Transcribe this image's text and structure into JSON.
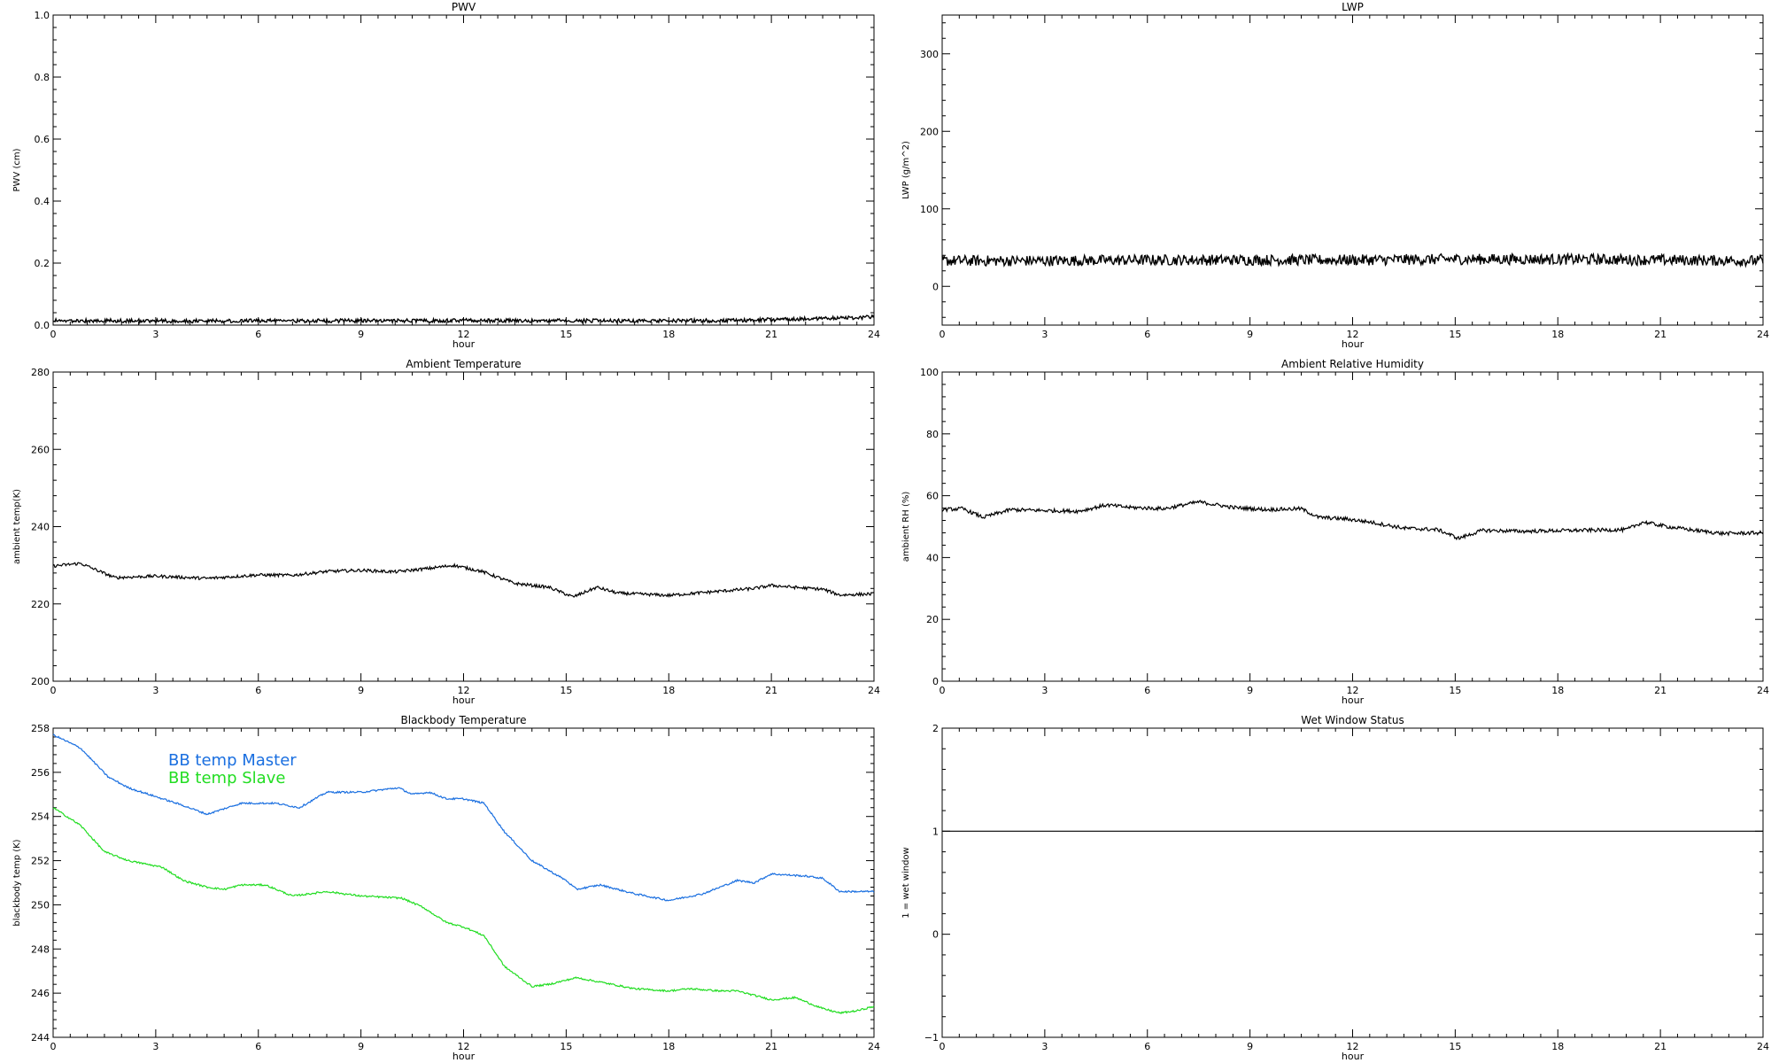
{
  "chart_data": [
    {
      "id": "pwv",
      "type": "line",
      "title": "PWV",
      "xlabel": "hour",
      "ylabel": "PWV (cm)",
      "xlim": [
        0,
        24
      ],
      "ylim": [
        0,
        1.0
      ],
      "xticks": [
        0,
        3,
        6,
        9,
        12,
        15,
        18,
        21,
        24
      ],
      "yticks": [
        0.0,
        0.2,
        0.4,
        0.6,
        0.8,
        1.0
      ],
      "ytick_labels": [
        "0.0",
        "0.2",
        "0.4",
        "0.6",
        "0.8",
        "1.0"
      ],
      "grid": false,
      "noise": 0.02,
      "series": [
        {
          "color": "#000000",
          "x": [
            0,
            2,
            4,
            6,
            8,
            10,
            12,
            14,
            16,
            18,
            20,
            22,
            23.5,
            24
          ],
          "y": [
            0.008,
            0.008,
            0.007,
            0.008,
            0.008,
            0.008,
            0.009,
            0.008,
            0.008,
            0.008,
            0.009,
            0.014,
            0.018,
            0.02
          ]
        }
      ]
    },
    {
      "id": "lwp",
      "type": "line",
      "title": "LWP",
      "xlabel": "hour",
      "ylabel": "LWP (g/m^2)",
      "xlim": [
        0,
        24
      ],
      "ylim": [
        -50,
        350
      ],
      "xticks": [
        0,
        3,
        6,
        9,
        12,
        15,
        18,
        21,
        24
      ],
      "yticks": [
        0,
        100,
        200,
        300
      ],
      "ytick_labels": [
        "0",
        "100",
        "200",
        "300"
      ],
      "grid": false,
      "noise": 7,
      "series": [
        {
          "color": "#000000",
          "x": [
            0,
            3,
            6,
            9,
            12,
            15,
            18,
            21,
            24
          ],
          "y": [
            33,
            33,
            34,
            34,
            34,
            35,
            35,
            34,
            33
          ]
        }
      ]
    },
    {
      "id": "ambient-temp",
      "type": "line",
      "title": "Ambient Temperature",
      "xlabel": "hour",
      "ylabel": "ambient temp(K)",
      "xlim": [
        0,
        24
      ],
      "ylim": [
        200,
        280
      ],
      "xticks": [
        0,
        3,
        6,
        9,
        12,
        15,
        18,
        21,
        24
      ],
      "yticks": [
        200,
        220,
        240,
        260,
        280
      ],
      "ytick_labels": [
        "200",
        "220",
        "240",
        "260",
        "280"
      ],
      "grid": false,
      "noise": 0.4,
      "series": [
        {
          "color": "#000000",
          "x": [
            0,
            0.8,
            1.8,
            3,
            4.5,
            6,
            7,
            8,
            9,
            10,
            11,
            11.7,
            12.5,
            13.5,
            14.5,
            15.2,
            15.9,
            16.5,
            18,
            19.5,
            20.5,
            21,
            21.8,
            22.5,
            23,
            24
          ],
          "y": [
            229.8,
            230.5,
            226.8,
            227.2,
            226.6,
            227.5,
            227.4,
            228.4,
            228.7,
            228.3,
            229.2,
            230.0,
            228.5,
            225.3,
            224.3,
            221.8,
            224.3,
            222.8,
            222.2,
            223.3,
            224.0,
            224.8,
            224.2,
            223.8,
            222.3,
            222.6
          ]
        }
      ]
    },
    {
      "id": "ambient-rh",
      "type": "line",
      "title": "Ambient Relative Humidity",
      "xlabel": "hour",
      "ylabel": "ambient RH (%)",
      "xlim": [
        0,
        24
      ],
      "ylim": [
        0,
        100
      ],
      "xticks": [
        0,
        3,
        6,
        9,
        12,
        15,
        18,
        21,
        24
      ],
      "yticks": [
        0,
        20,
        40,
        60,
        80,
        100
      ],
      "ytick_labels": [
        "0",
        "20",
        "40",
        "60",
        "80",
        "100"
      ],
      "grid": false,
      "noise": 0.6,
      "series": [
        {
          "color": "#000000",
          "x": [
            0,
            0.6,
            1.2,
            2,
            3,
            4,
            4.8,
            5.5,
            6.5,
            7.5,
            8.5,
            9.5,
            10.5,
            11,
            11.8,
            12.5,
            13.5,
            14.5,
            15.1,
            15.8,
            17,
            18.5,
            20,
            20.5,
            21.2,
            22,
            22.8,
            24
          ],
          "y": [
            55.5,
            55.8,
            53.0,
            55.5,
            55.2,
            55.0,
            57.0,
            56.2,
            55.8,
            58.0,
            56.2,
            55.5,
            55.8,
            53.0,
            52.5,
            51.5,
            49.5,
            49.0,
            46.2,
            48.8,
            48.5,
            48.8,
            49.0,
            51.5,
            50.0,
            48.8,
            47.8,
            48.0
          ]
        }
      ]
    },
    {
      "id": "blackbody-temp",
      "type": "line",
      "title": "Blackbody Temperature",
      "xlabel": "hour",
      "ylabel": "blackbody temp (K)",
      "xlim": [
        0,
        24
      ],
      "ylim": [
        244,
        258
      ],
      "xticks": [
        0,
        3,
        6,
        9,
        12,
        15,
        18,
        21,
        24
      ],
      "yticks": [
        244,
        246,
        248,
        250,
        252,
        254,
        256,
        258
      ],
      "ytick_labels": [
        "244",
        "246",
        "248",
        "250",
        "252",
        "254",
        "256",
        "258"
      ],
      "grid": false,
      "noise": 0.04,
      "legend": "top-left",
      "series": [
        {
          "name": "BB temp Master",
          "color": "#1a6fe0",
          "x": [
            0,
            0.8,
            1.6,
            2.2,
            3,
            3.8,
            4.5,
            5.5,
            6.5,
            7.2,
            8,
            9,
            10.1,
            10.5,
            11,
            11.5,
            12,
            12.6,
            13.2,
            14,
            15,
            15.3,
            16,
            17,
            18,
            19,
            20,
            20.5,
            21,
            22,
            22.5,
            23,
            24
          ],
          "y": [
            257.7,
            257.1,
            255.8,
            255.3,
            254.9,
            254.5,
            254.1,
            254.6,
            254.6,
            254.4,
            255.1,
            255.1,
            255.3,
            255.0,
            255.1,
            254.8,
            254.8,
            254.6,
            253.3,
            252.0,
            251.1,
            250.7,
            250.9,
            250.5,
            250.2,
            250.5,
            251.1,
            251.0,
            251.4,
            251.3,
            251.2,
            250.6,
            250.6
          ]
        },
        {
          "name": "BB temp Slave",
          "color": "#22dd22",
          "x": [
            0,
            0.8,
            1.5,
            2.2,
            3.2,
            3.8,
            4.5,
            5,
            5.5,
            6.2,
            7,
            8,
            9,
            10.2,
            10.8,
            11.5,
            12,
            12.6,
            13.2,
            14,
            14.5,
            15.3,
            16,
            17,
            18,
            18.6,
            19.5,
            20,
            20.5,
            21,
            21.7,
            22.5,
            23,
            23.5,
            24
          ],
          "y": [
            254.4,
            253.6,
            252.4,
            252.0,
            251.7,
            251.1,
            250.8,
            250.7,
            250.9,
            250.9,
            250.4,
            250.6,
            250.4,
            250.3,
            249.9,
            249.2,
            249.0,
            248.6,
            247.2,
            246.3,
            246.4,
            246.7,
            246.5,
            246.2,
            246.1,
            246.2,
            246.1,
            246.1,
            245.9,
            245.7,
            245.8,
            245.3,
            245.1,
            245.2,
            245.4
          ]
        }
      ]
    },
    {
      "id": "wet-window",
      "type": "line",
      "title": "Wet Window Status",
      "xlabel": "hour",
      "ylabel": "1 = wet window",
      "xlim": [
        0,
        24
      ],
      "ylim": [
        -1,
        2
      ],
      "xticks": [
        0,
        3,
        6,
        9,
        12,
        15,
        18,
        21,
        24
      ],
      "yticks": [
        -1,
        0,
        1,
        2
      ],
      "ytick_labels": [
        "−1",
        "0",
        "1",
        "2"
      ],
      "grid": false,
      "noise": 0,
      "series": [
        {
          "color": "#000000",
          "x": [
            0,
            24
          ],
          "y": [
            1,
            1
          ]
        }
      ]
    }
  ]
}
